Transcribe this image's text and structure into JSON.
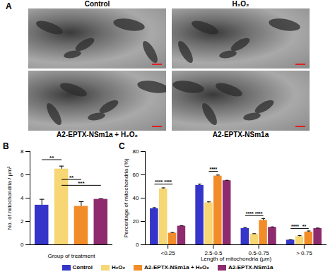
{
  "panel_a": {
    "label": "A",
    "images": [
      {
        "caption": "Control"
      },
      {
        "caption": "H₂O₂"
      },
      {
        "caption": "A2-EPTX-NSm1a + H₂O₂"
      },
      {
        "caption": "A2-EPTX-NSm1a"
      }
    ]
  },
  "chart_data": [
    {
      "panel": "B",
      "type": "bar",
      "x_label": "Group of treatment",
      "y_label": "No. of mitochondria / µm²",
      "categories": [
        "Control",
        "H₂O₂",
        "A2-EPTX-NSm1a + H₂O₂",
        "A2-EPTX-NSm1a"
      ],
      "values": [
        3.4,
        6.5,
        3.3,
        3.9
      ],
      "errors": [
        0.5,
        0.25,
        0.4,
        0.05
      ],
      "colors": [
        "#3535c9",
        "#f7d774",
        "#f28c28",
        "#8e2b6e"
      ],
      "ylim": [
        0,
        8
      ],
      "yticks": [
        0,
        2,
        4,
        6,
        8
      ],
      "tick_labels": "y",
      "significance": [
        {
          "from": "Control",
          "to": "H₂O₂",
          "label": "**",
          "y": 7.3
        },
        {
          "from": "H₂O₂",
          "to": "A2-EPTX-NSm1a + H₂O₂",
          "label": "**",
          "y": 5.6
        },
        {
          "from": "H₂O₂",
          "to": "A2-EPTX-NSm1a",
          "label": "***",
          "y": 5.1
        }
      ]
    },
    {
      "panel": "C",
      "type": "bar",
      "x_label": "Length of mitochondria (µm)",
      "y_label": "Percentage of mitochondria (%)",
      "categories": [
        "<0.25",
        "2.5-0.5",
        "0.5-0.75",
        "> 0.75"
      ],
      "series": [
        {
          "name": "Control",
          "color": "#3535c9",
          "values": [
            31,
            51,
            14,
            4
          ],
          "errors": [
            0.8,
            1,
            0.8,
            0.3
          ]
        },
        {
          "name": "H₂O₂",
          "color": "#f7d774",
          "values": [
            48,
            36,
            9,
            7
          ],
          "errors": [
            0.8,
            0.8,
            0.5,
            0.8
          ]
        },
        {
          "name": "A2-EPTX-NSm1a + H₂O₂",
          "color": "#f28c28",
          "values": [
            10,
            59,
            21,
            11
          ],
          "errors": [
            0.5,
            0.8,
            1.5,
            0.8
          ]
        },
        {
          "name": "A2-EPTX-NSm1a",
          "color": "#8e2b6e",
          "values": [
            16,
            55,
            15,
            14
          ],
          "errors": [
            0.3,
            0.3,
            0.3,
            0.3
          ]
        }
      ],
      "ylim": [
        0,
        80
      ],
      "yticks": [
        0,
        20,
        40,
        60,
        80
      ],
      "legend": "bottom",
      "significance": [
        {
          "category": "<0.25",
          "from": "Control",
          "to": "H₂O₂",
          "label": "****",
          "y": 52
        },
        {
          "category": "<0.25",
          "from": "H₂O₂",
          "to": "A2-EPTX-NSm1a + H₂O₂",
          "label": "****",
          "y": 52
        },
        {
          "category": "2.5-0.5",
          "from": "H₂O₂",
          "to": "A2-EPTX-NSm1a + H₂O₂",
          "label": "****",
          "y": 63
        },
        {
          "category": "0.5-0.75",
          "from": "Control",
          "to": "H₂O₂",
          "label": "****",
          "y": 25
        },
        {
          "category": "0.5-0.75",
          "from": "H₂O₂",
          "to": "A2-EPTX-NSm1a + H₂O₂",
          "label": "****",
          "y": 25
        },
        {
          "category": "> 0.75",
          "from": "Control",
          "to": "H₂O₂",
          "label": "****",
          "y": 14
        },
        {
          "category": "> 0.75",
          "from": "H₂O₂",
          "to": "A2-EPTX-NSm1a + H₂O₂",
          "label": "**",
          "y": 14
        }
      ]
    }
  ]
}
